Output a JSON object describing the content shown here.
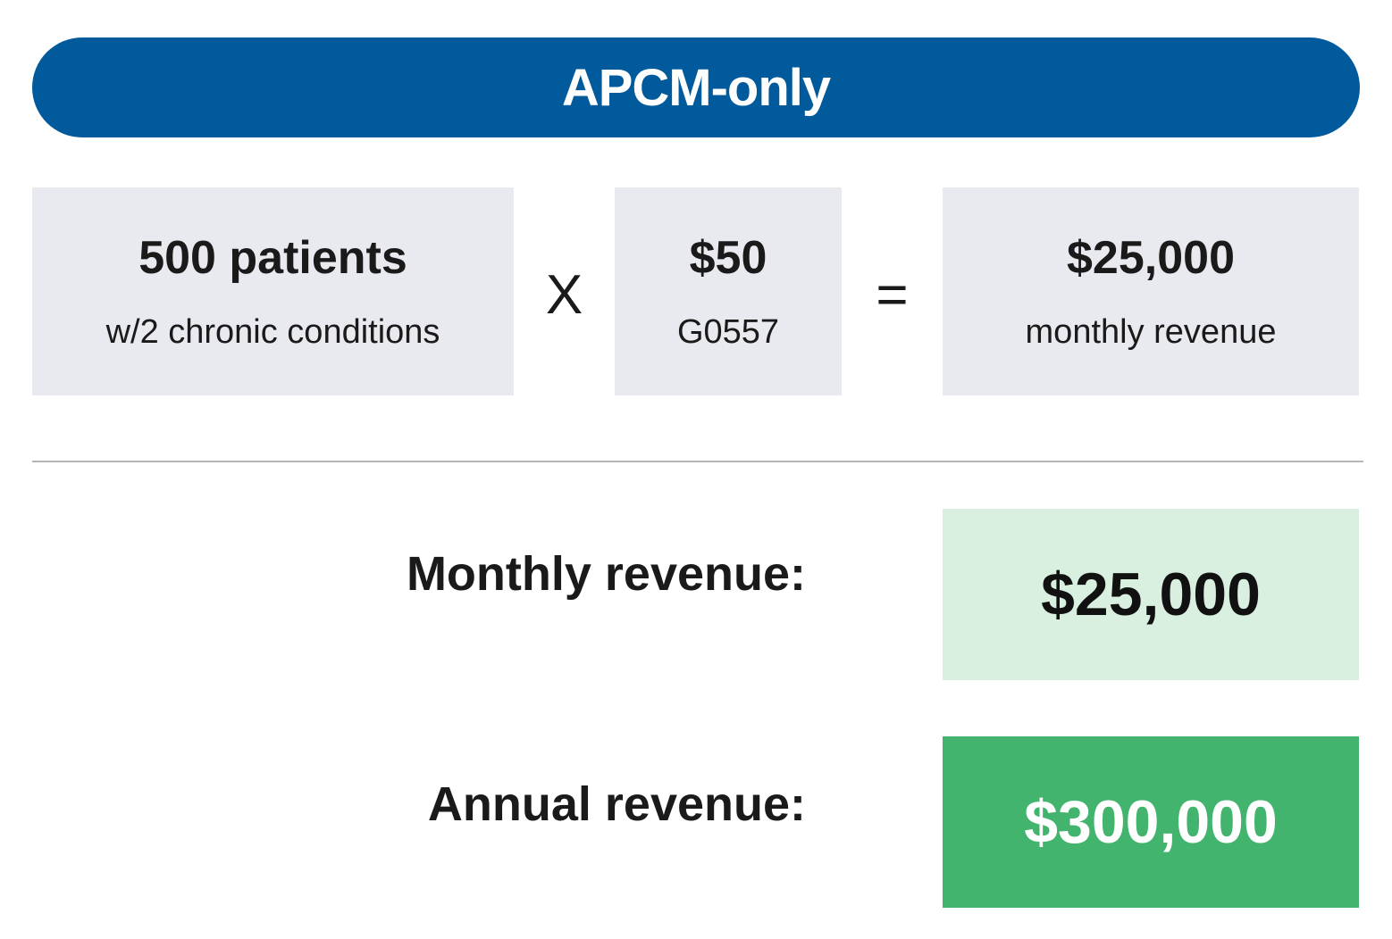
{
  "header": {
    "title": "APCM-only"
  },
  "equation": {
    "patients": {
      "main": "500 patients",
      "sub": "w/2 chronic conditions"
    },
    "times_operator": "X",
    "rate": {
      "main": "$50",
      "sub": "G0557"
    },
    "equals_operator": "=",
    "result": {
      "main": "$25,000",
      "sub": "monthly revenue"
    }
  },
  "summary": {
    "monthly": {
      "label": "Monthly revenue:",
      "value": "$25,000"
    },
    "annual": {
      "label": "Annual revenue:",
      "value": "$300,000"
    }
  },
  "colors": {
    "header": "#015a9c",
    "box": "#e9e9f0",
    "monthly_box": "#d9f0e1",
    "annual_box": "#42b46e"
  }
}
